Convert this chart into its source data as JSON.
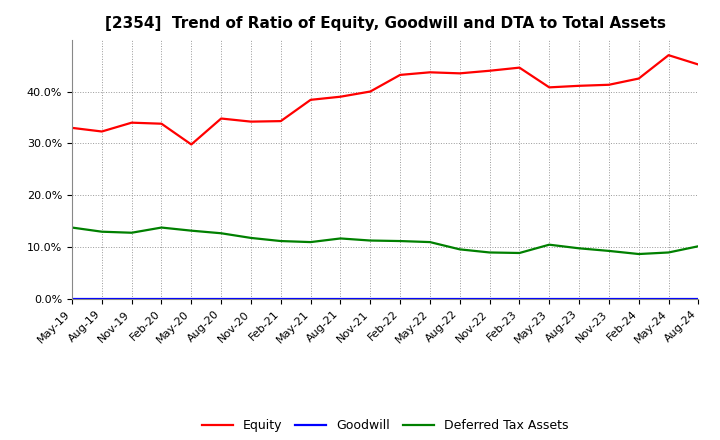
{
  "title": "[2354]  Trend of Ratio of Equity, Goodwill and DTA to Total Assets",
  "labels": [
    "May-19",
    "Aug-19",
    "Nov-19",
    "Feb-20",
    "May-20",
    "Aug-20",
    "Nov-20",
    "Feb-21",
    "May-21",
    "Aug-21",
    "Nov-21",
    "Feb-22",
    "May-22",
    "Aug-22",
    "Nov-22",
    "Feb-23",
    "May-23",
    "Aug-23",
    "Nov-23",
    "Feb-24",
    "May-24",
    "Aug-24"
  ],
  "equity": [
    0.33,
    0.323,
    0.34,
    0.338,
    0.298,
    0.348,
    0.342,
    0.343,
    0.384,
    0.39,
    0.4,
    0.432,
    0.437,
    0.435,
    0.44,
    0.446,
    0.408,
    0.411,
    0.413,
    0.425,
    0.47,
    0.452
  ],
  "goodwill": [
    0.0,
    0.0,
    0.0,
    0.0,
    0.0,
    0.0,
    0.0,
    0.0,
    0.0,
    0.0,
    0.0,
    0.0,
    0.0,
    0.0,
    0.0,
    0.0,
    0.0,
    0.0,
    0.0,
    0.0,
    0.0,
    0.0
  ],
  "dta": [
    0.138,
    0.13,
    0.128,
    0.138,
    0.132,
    0.127,
    0.118,
    0.112,
    0.11,
    0.117,
    0.113,
    0.112,
    0.11,
    0.096,
    0.09,
    0.089,
    0.105,
    0.098,
    0.093,
    0.087,
    0.09,
    0.102
  ],
  "equity_color": "#ff0000",
  "goodwill_color": "#0000ff",
  "dta_color": "#008000",
  "ylim": [
    0.0,
    0.5
  ],
  "yticks": [
    0.0,
    0.1,
    0.2,
    0.3,
    0.4
  ],
  "background_color": "#ffffff",
  "grid_color": "#999999",
  "legend_labels": [
    "Equity",
    "Goodwill",
    "Deferred Tax Assets"
  ],
  "title_fontsize": 11,
  "tick_fontsize": 8,
  "legend_fontsize": 9,
  "linewidth": 1.6,
  "label_rotation": 45
}
